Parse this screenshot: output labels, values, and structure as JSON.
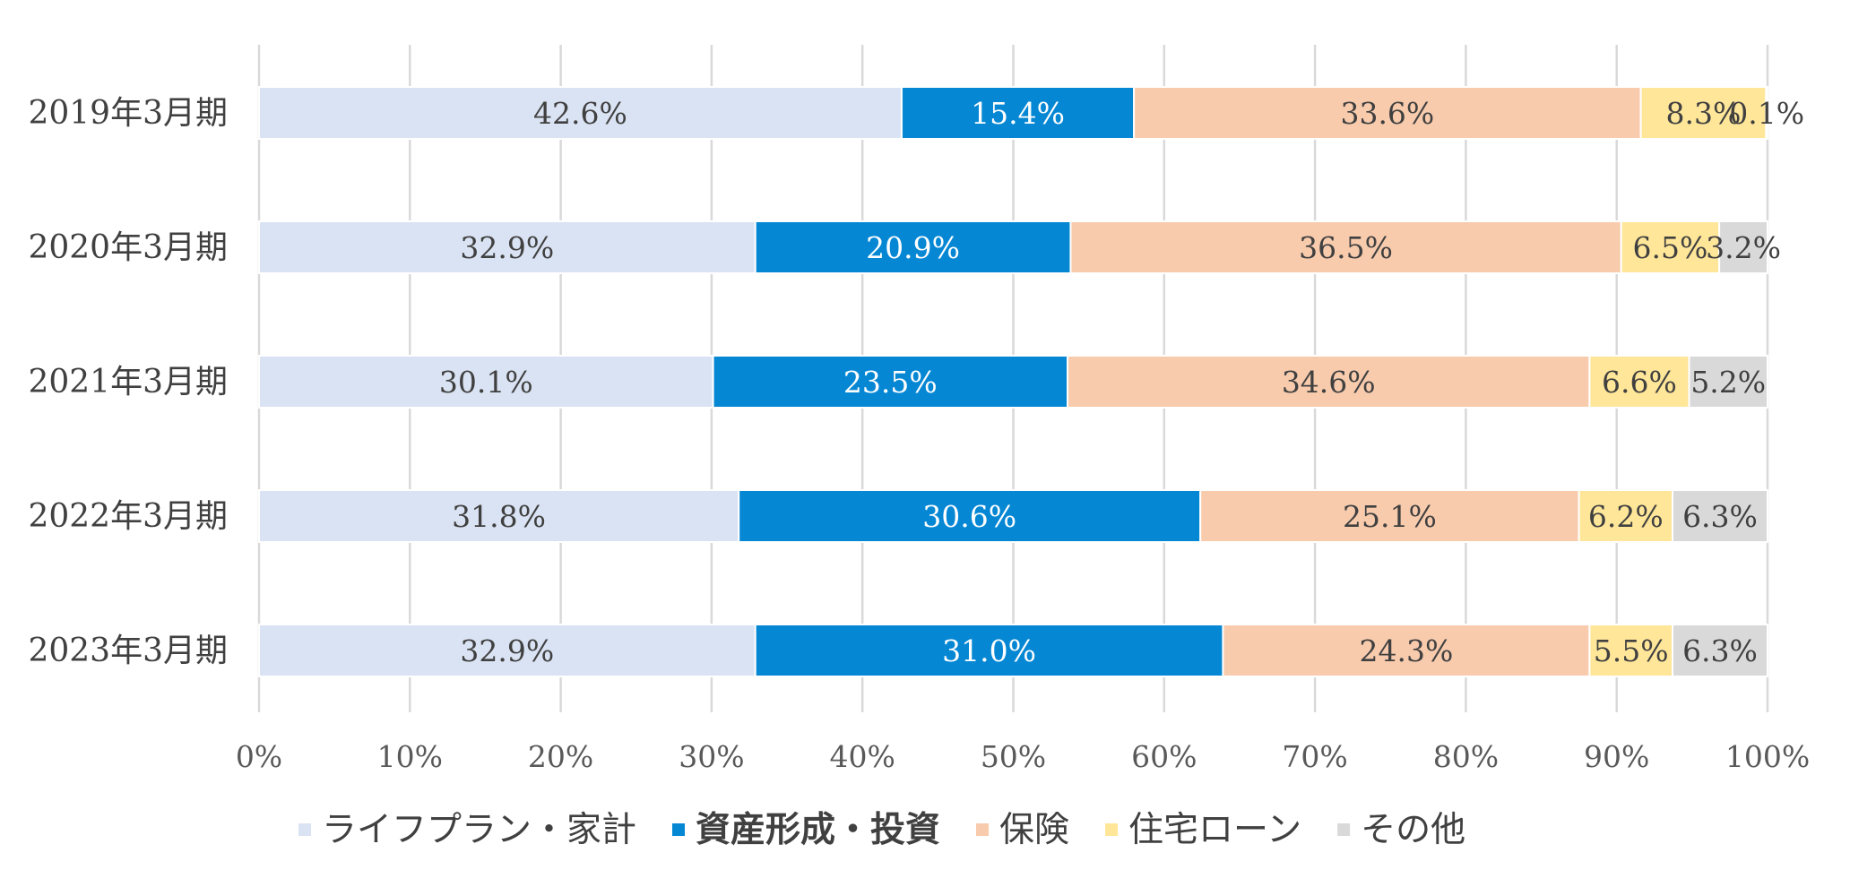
{
  "chart_data": {
    "type": "bar",
    "orientation": "horizontal",
    "stacked": true,
    "percent_stacked": true,
    "categories": [
      "2019年3月期",
      "2020年3月期",
      "2021年3月期",
      "2022年3月期",
      "2023年3月期"
    ],
    "series": [
      {
        "name": "ライフプラン・家計",
        "color": "#DAE3F3",
        "label_color": "#404040",
        "values": [
          42.6,
          32.9,
          30.1,
          31.8,
          32.9
        ],
        "labels": [
          "42.6%",
          "32.9%",
          "30.1%",
          "31.8%",
          "32.9%"
        ]
      },
      {
        "name": "資産形成・投資",
        "color": "#0587D4",
        "label_color": "#FFFFFF",
        "legend_bold": true,
        "values": [
          15.4,
          20.9,
          23.5,
          30.6,
          31.0
        ],
        "labels": [
          "15.4%",
          "20.9%",
          "23.5%",
          "30.6%",
          "31.0%"
        ]
      },
      {
        "name": "保険",
        "color": "#F8CBAD",
        "label_color": "#404040",
        "values": [
          33.6,
          36.5,
          34.6,
          25.1,
          24.3
        ],
        "labels": [
          "33.6%",
          "36.5%",
          "34.6%",
          "25.1%",
          "24.3%"
        ]
      },
      {
        "name": "住宅ローン",
        "color": "#FFE699",
        "label_color": "#404040",
        "values": [
          8.3,
          6.5,
          6.6,
          6.2,
          5.5
        ],
        "labels": [
          "8.3%",
          "6.5%",
          "6.6%",
          "6.2%",
          "5.5%"
        ]
      },
      {
        "name": "その他",
        "color": "#D9D9D9",
        "label_color": "#404040",
        "values": [
          0.1,
          3.2,
          5.2,
          6.3,
          6.3
        ],
        "labels": [
          "0.1%",
          "3.2%",
          "5.2%",
          "6.3%",
          "6.3%"
        ]
      }
    ],
    "x_ticks": [
      "0%",
      "10%",
      "20%",
      "30%",
      "40%",
      "50%",
      "60%",
      "70%",
      "80%",
      "90%",
      "100%"
    ],
    "xlim": [
      0,
      100
    ],
    "grid": true,
    "legend_position": "bottom",
    "title": "",
    "xlabel": "",
    "ylabel": ""
  }
}
